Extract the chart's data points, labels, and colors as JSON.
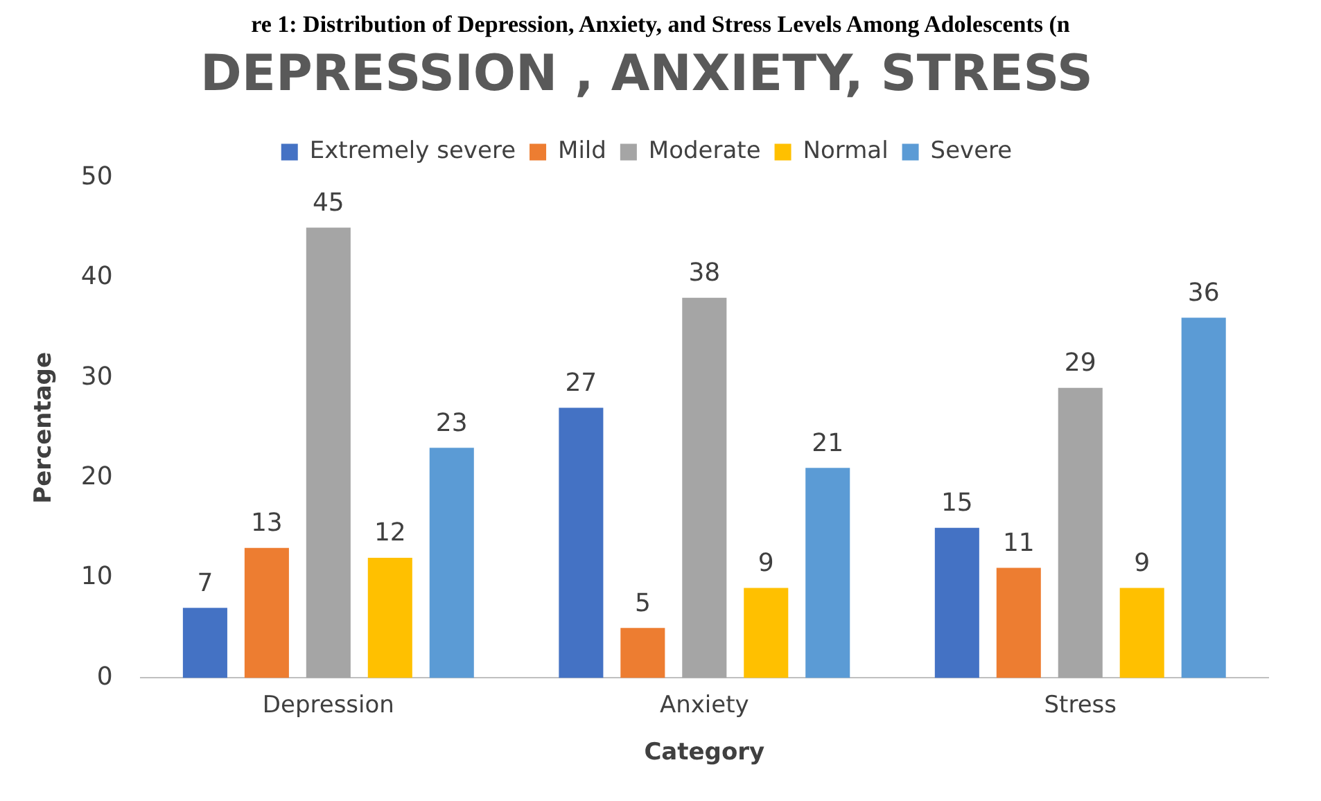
{
  "chart_data": {
    "type": "bar",
    "title": "DEPRESSION , ANXIETY, STRESS",
    "xlabel": "Category",
    "ylabel": "Percentage",
    "annotations": [
      "re 1: Distribution of Depression, Anxiety, and Stress Levels Among Adolescents (n"
    ],
    "categories": [
      "Depression",
      "Anxiety",
      "Stress"
    ],
    "series": [
      {
        "name": "Extremely severe",
        "color": "#4472c4",
        "values": [
          7,
          27,
          15
        ]
      },
      {
        "name": "Mild",
        "color": "#ed7d31",
        "values": [
          13,
          5,
          11
        ]
      },
      {
        "name": "Moderate",
        "color": "#a5a5a5",
        "values": [
          45,
          38,
          29
        ]
      },
      {
        "name": "Normal",
        "color": "#ffc000",
        "values": [
          12,
          9,
          9
        ]
      },
      {
        "name": "Severe",
        "color": "#5b9bd5",
        "values": [
          23,
          21,
          36
        ]
      }
    ],
    "ylim": [
      0,
      50
    ],
    "yticks": [
      0,
      10,
      20,
      30,
      40,
      50
    ],
    "grid": false,
    "legend": "top",
    "data_labels": true
  }
}
